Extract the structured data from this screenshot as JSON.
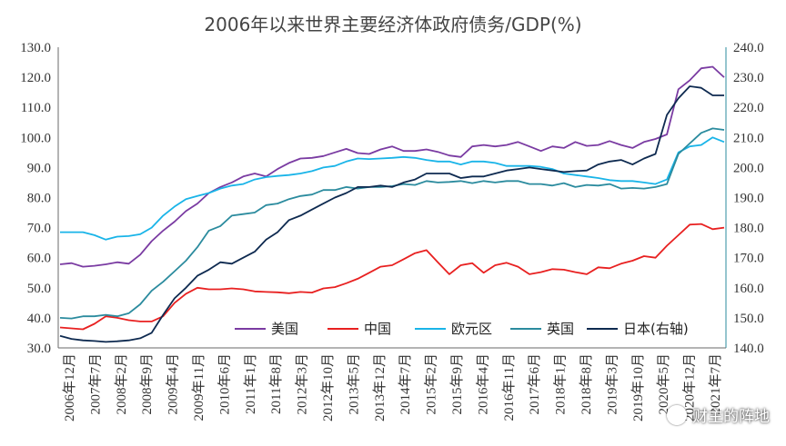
{
  "chart_data": {
    "type": "line",
    "title": "2006年以来世界主要经济体政府债务/GDP(%)",
    "y_left": {
      "min": 30,
      "max": 130,
      "step": 10,
      "ticks": [
        "30.0",
        "40.0",
        "50.0",
        "60.0",
        "70.0",
        "80.0",
        "90.0",
        "100.0",
        "110.0",
        "120.0",
        "130.0"
      ]
    },
    "y_right": {
      "min": 140,
      "max": 240,
      "step": 10,
      "ticks": [
        "140.0",
        "150.0",
        "160.0",
        "170.0",
        "180.0",
        "190.0",
        "200.0",
        "210.0",
        "220.0",
        "230.0",
        "240.0"
      ]
    },
    "x_start": "2006年12月",
    "x_end": "2021年7月",
    "x_tick_labels": [
      "2006年12月",
      "2007年7月",
      "2008年2月",
      "2008年9月",
      "2009年4月",
      "2009年11月",
      "2010年6月",
      "2011年1月",
      "2011年8月",
      "2012年3月",
      "2012年10月",
      "2013年5月",
      "2013年12月",
      "2014年7月",
      "2015年2月",
      "2015年9月",
      "2016年4月",
      "2016年11月",
      "2017年6月",
      "2018年1月",
      "2018年8月",
      "2019年3月",
      "2019年10月",
      "2020年5月",
      "2020年12月",
      "2021年7月"
    ],
    "grid": false,
    "legend_position": "bottom-center",
    "series": [
      {
        "name": "美国",
        "color": "#7A3BA2",
        "axis": "left",
        "values": [
          57.8,
          58.2,
          57.0,
          57.3,
          57.8,
          58.5,
          58.0,
          61.0,
          65.5,
          69.0,
          72.0,
          75.5,
          78.0,
          81.5,
          83.5,
          85.0,
          87.0,
          88.0,
          87.0,
          89.5,
          91.5,
          93.0,
          93.2,
          93.8,
          95.0,
          96.2,
          94.8,
          94.5,
          96.0,
          97.0,
          95.5,
          95.5,
          96.0,
          95.2,
          94.0,
          93.5,
          97.0,
          97.5,
          97.0,
          97.5,
          98.5,
          97.0,
          95.5,
          97.0,
          96.5,
          98.5,
          97.2,
          97.5,
          98.8,
          97.5,
          96.5,
          98.5,
          99.5,
          101.0,
          116.0,
          119.0,
          123.0,
          123.5,
          120.0
        ]
      },
      {
        "name": "中国",
        "color": "#E82020",
        "axis": "left",
        "values": [
          36.8,
          36.5,
          36.2,
          38.0,
          40.5,
          40.0,
          39.2,
          38.8,
          38.8,
          40.5,
          45.0,
          48.0,
          50.0,
          49.5,
          49.5,
          49.8,
          49.5,
          48.8,
          48.6,
          48.5,
          48.2,
          48.6,
          48.4,
          49.8,
          50.2,
          51.5,
          53.0,
          55.0,
          57.0,
          57.5,
          59.5,
          61.5,
          62.5,
          58.5,
          54.5,
          57.5,
          58.2,
          55.0,
          57.5,
          58.3,
          57.0,
          54.5,
          55.2,
          56.2,
          56.0,
          55.2,
          54.5,
          56.8,
          56.5,
          58.0,
          59.0,
          60.5,
          60.0,
          64.0,
          67.5,
          71.0,
          71.2,
          69.5,
          70.0
        ]
      },
      {
        "name": "欧元区",
        "color": "#19B4E8",
        "axis": "left",
        "values": [
          68.5,
          68.5,
          68.5,
          67.5,
          66.0,
          67.0,
          67.2,
          67.8,
          70.0,
          74.0,
          77.0,
          79.5,
          80.5,
          81.5,
          83.0,
          84.0,
          84.5,
          86.0,
          86.8,
          87.2,
          87.5,
          88.0,
          88.8,
          90.0,
          90.5,
          92.0,
          93.0,
          92.8,
          93.0,
          93.2,
          93.5,
          93.2,
          92.5,
          92.0,
          92.0,
          91.0,
          92.0,
          92.0,
          91.5,
          90.5,
          90.5,
          90.5,
          90.2,
          89.5,
          88.0,
          87.5,
          87.0,
          86.5,
          85.8,
          85.5,
          85.5,
          85.0,
          84.5,
          86.0,
          95.0,
          97.0,
          97.5,
          100.0,
          98.5
        ]
      },
      {
        "name": "英国",
        "color": "#2B8B9E",
        "axis": "left",
        "values": [
          40.0,
          39.8,
          40.5,
          40.5,
          41.0,
          40.5,
          41.5,
          44.5,
          49.0,
          52.0,
          55.5,
          59.0,
          63.5,
          69.0,
          70.5,
          74.0,
          74.5,
          75.0,
          77.5,
          78.0,
          79.5,
          80.5,
          81.0,
          82.5,
          82.5,
          83.5,
          83.0,
          83.5,
          83.5,
          83.8,
          84.5,
          84.2,
          85.5,
          85.0,
          85.2,
          85.5,
          84.8,
          85.5,
          85.0,
          85.5,
          85.5,
          84.5,
          84.5,
          84.0,
          84.8,
          83.5,
          84.2,
          84.0,
          84.5,
          83.0,
          83.2,
          83.0,
          83.5,
          84.5,
          94.5,
          98.0,
          101.5,
          103.0,
          102.5
        ]
      },
      {
        "name": "日本(右轴)",
        "color": "#0E2A50",
        "axis": "right",
        "values": [
          144.0,
          143.0,
          142.5,
          142.3,
          142.0,
          142.2,
          142.5,
          143.2,
          145.0,
          151.0,
          156.5,
          160.0,
          164.0,
          166.0,
          168.5,
          168.0,
          170.0,
          172.0,
          176.0,
          178.5,
          182.5,
          184.0,
          186.0,
          188.0,
          190.0,
          191.5,
          193.5,
          193.5,
          194.0,
          193.5,
          195.0,
          196.0,
          198.0,
          198.0,
          198.0,
          196.5,
          197.0,
          197.0,
          198.0,
          199.0,
          199.5,
          200.0,
          199.5,
          199.0,
          198.5,
          198.8,
          199.0,
          201.0,
          202.0,
          202.5,
          201.0,
          203.0,
          204.5,
          217.5,
          223.0,
          227.0,
          226.5,
          224.0,
          224.0
        ]
      }
    ]
  },
  "legend": [
    {
      "label": "美国",
      "color": "#7A3BA2"
    },
    {
      "label": "中国",
      "color": "#E82020"
    },
    {
      "label": "欧元区",
      "color": "#19B4E8"
    },
    {
      "label": "英国",
      "color": "#2B8B9E"
    },
    {
      "label": "日本(右轴)",
      "color": "#0E2A50"
    }
  ],
  "watermark": {
    "text": "财主的阵地",
    "icon": "wechat-icon"
  }
}
